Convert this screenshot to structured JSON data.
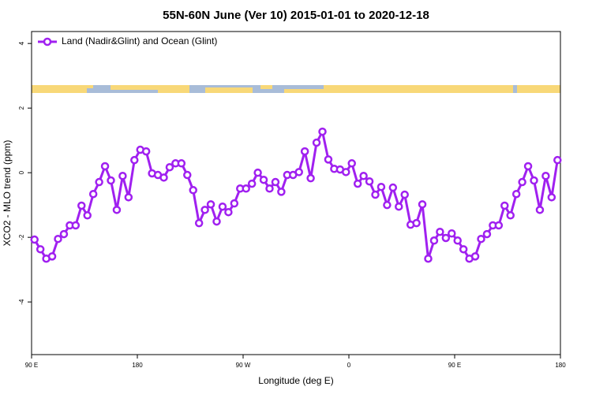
{
  "chart_data": {
    "type": "line",
    "title": "55N-60N June (Ver 10)   2015-01-01 to 2020-12-18",
    "x_label": "Longitude (deg E)",
    "y_label": "XCO2 - MLO trend (ppm)",
    "legend": "top-left",
    "xlim": [
      90,
      540
    ],
    "ylim": [
      -5.63,
      4.37
    ],
    "xticks": [
      {
        "value": 90,
        "label": "90 E"
      },
      {
        "value": 180,
        "label": "180"
      },
      {
        "value": 270,
        "label": "90 W"
      },
      {
        "value": 360,
        "label": "0"
      },
      {
        "value": 450,
        "label": "90 E"
      },
      {
        "value": 540,
        "label": "180"
      }
    ],
    "yticks": [
      -4,
      -2,
      0,
      2,
      4
    ],
    "x": [
      92.5,
      97.5,
      102.5,
      107.5,
      112.5,
      117.5,
      122.5,
      127.5,
      132.5,
      137.5,
      142.5,
      147.5,
      152.5,
      157.5,
      162.5,
      167.5,
      172.5,
      177.5,
      182.5,
      187.5,
      192.5,
      197.5,
      202.5,
      207.5,
      212.5,
      217.5,
      222.5,
      227.5,
      232.5,
      237.5,
      242.5,
      247.5,
      252.5,
      257.5,
      262.5,
      267.5,
      272.5,
      277.5,
      282.5,
      287.5,
      292.5,
      297.5,
      302.5,
      307.5,
      312.5,
      317.5,
      322.5,
      327.5,
      332.5,
      337.5,
      342.5,
      347.5,
      352.5,
      357.5,
      362.5,
      367.5,
      372.5,
      377.5,
      382.5,
      387.5,
      392.5,
      397.5,
      402.5,
      407.5,
      412.5,
      417.5,
      422.5,
      427.5,
      432.5,
      437.5,
      442.5,
      447.5,
      452.5,
      457.5,
      462.5,
      467.5,
      472.5,
      477.5,
      482.5,
      487.5,
      492.5,
      497.5,
      502.5,
      507.5,
      512.5,
      517.5,
      522.5,
      527.5,
      532.5,
      537.5
    ],
    "series": [
      {
        "name": "Land (Nadir&Glint) and Ocean (Glint)",
        "color": "#a020f0",
        "values": [
          -2.07,
          -2.37,
          -2.66,
          -2.59,
          -2.05,
          -1.9,
          -1.63,
          -1.63,
          -1.02,
          -1.32,
          -0.66,
          -0.29,
          0.2,
          -0.24,
          -1.15,
          -0.1,
          -0.76,
          0.39,
          0.71,
          0.66,
          -0.02,
          -0.07,
          -0.15,
          0.17,
          0.29,
          0.29,
          -0.07,
          -0.54,
          -1.56,
          -1.15,
          -0.98,
          -1.51,
          -1.05,
          -1.22,
          -0.95,
          -0.49,
          -0.49,
          -0.34,
          0,
          -0.22,
          -0.49,
          -0.29,
          -0.59,
          -0.07,
          -0.07,
          0.02,
          0.66,
          -0.17,
          0.93,
          1.27,
          0.41,
          0.12,
          0.1,
          0.02,
          0.29,
          -0.34,
          -0.1,
          -0.27,
          -0.68,
          -0.44,
          -1.0,
          -0.46,
          -1.05,
          -0.68,
          -1.61,
          -1.56,
          -0.98,
          -2.66,
          -2.1,
          -1.83,
          -2.02,
          -1.88,
          -2.1,
          -2.37,
          -2.66,
          -2.59,
          -2.05,
          -1.9,
          -1.63,
          -1.63,
          -1.02,
          -1.32,
          -0.66,
          -0.29,
          0.2,
          -0.24,
          -1.15,
          -0.1,
          -0.76,
          0.39
        ]
      }
    ]
  }
}
